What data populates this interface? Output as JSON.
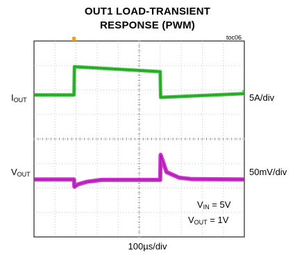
{
  "chart_data": {
    "type": "line",
    "title": "OUT1 LOAD-TRANSIENT",
    "subtitle": "RESPONSE (PWM)",
    "figure_id": "toc06",
    "xlabel": "100µs/div",
    "x_divisions": 10,
    "y_divisions": 8,
    "grid": true,
    "series": [
      {
        "name_main": "I",
        "name_sub": "OUT",
        "scale": "5A/div",
        "color": "#22b722",
        "x_div": [
          0,
          1.9,
          1.92,
          6.0,
          6.02,
          10
        ],
        "y_div_above_center": [
          1.8,
          1.8,
          2.95,
          2.75,
          1.7,
          1.85
        ]
      },
      {
        "name_main": "V",
        "name_sub": "OUT",
        "scale": "50mV/div",
        "color": "#cc1acc",
        "x_div": [
          0,
          1.9,
          1.92,
          2.1,
          2.5,
          3.2,
          6.0,
          6.02,
          6.3,
          6.9,
          7.5,
          10
        ],
        "y_div_above_center": [
          -1.65,
          -1.65,
          -1.95,
          -1.85,
          -1.75,
          -1.67,
          -1.67,
          -0.65,
          -1.35,
          -1.58,
          -1.64,
          -1.65
        ]
      }
    ],
    "conditions": [
      {
        "main": "V",
        "sub": "IN",
        "rest": " = 5V"
      },
      {
        "main": "V",
        "sub": "OUT",
        "rest": " = 1V"
      }
    ]
  }
}
